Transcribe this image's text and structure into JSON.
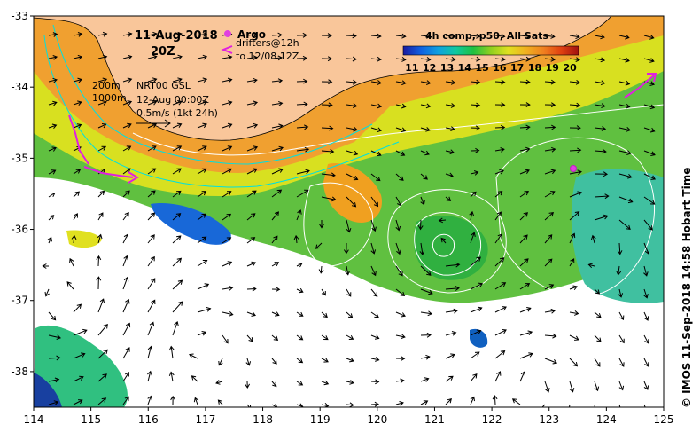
{
  "title": {
    "date": "11-Aug-2018",
    "time": "20Z"
  },
  "legend_argo": {
    "argo_label": "Argo",
    "drifters_label": "drifters@12h",
    "drifters_window": "to 12/08 12Z"
  },
  "overlays": {
    "isobath_200": "200m",
    "isobath_1000": "1000m",
    "model_label": "NRT00 GSL",
    "model_time": "12-Aug 00:00Z",
    "vector_scale": "0.5m/s (1kt 24h)"
  },
  "colorbar": {
    "title": "4h comp, p50, All Sats",
    "ticks": [
      "11",
      "12",
      "13",
      "14",
      "15",
      "16",
      "17",
      "18",
      "19",
      "20"
    ],
    "min": 10.5,
    "max": 20.5
  },
  "axes": {
    "lon_ticks": [
      "114",
      "115",
      "116",
      "117",
      "118",
      "119",
      "120",
      "121",
      "122",
      "123",
      "124",
      "125"
    ],
    "lat_ticks": [
      "-33",
      "-34",
      "-35",
      "-36",
      "-37",
      "-38"
    ],
    "lon_range": [
      114,
      125
    ],
    "lat_range": [
      -38.5,
      -33
    ]
  },
  "credit": "© IMOS 11-Sep-2018 14:58 Hobart Time",
  "colors": {
    "land": "#f9c69a",
    "argo": "#e040e0",
    "drifter": "#e020e0",
    "contour": "#ffffff",
    "isobath": "#00e0e0"
  }
}
